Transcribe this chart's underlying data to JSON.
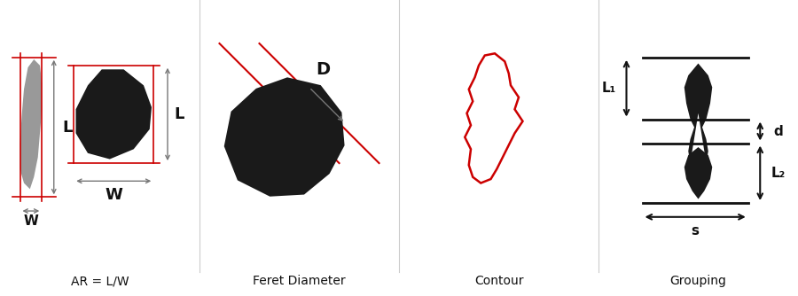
{
  "panel_labels": [
    "AR = L/W",
    "Feret Diameter",
    "Contour",
    "Grouping"
  ],
  "bg_color": "#ffffff",
  "dark_shape_color": "#1a1a1a",
  "gray_shape_color": "#999999",
  "red_color": "#cc0000",
  "arrow_color": "#777777",
  "black_arrow_color": "#111111",
  "text_color": "#111111",
  "figsize": [
    9.0,
    3.34
  ],
  "dpi": 100
}
